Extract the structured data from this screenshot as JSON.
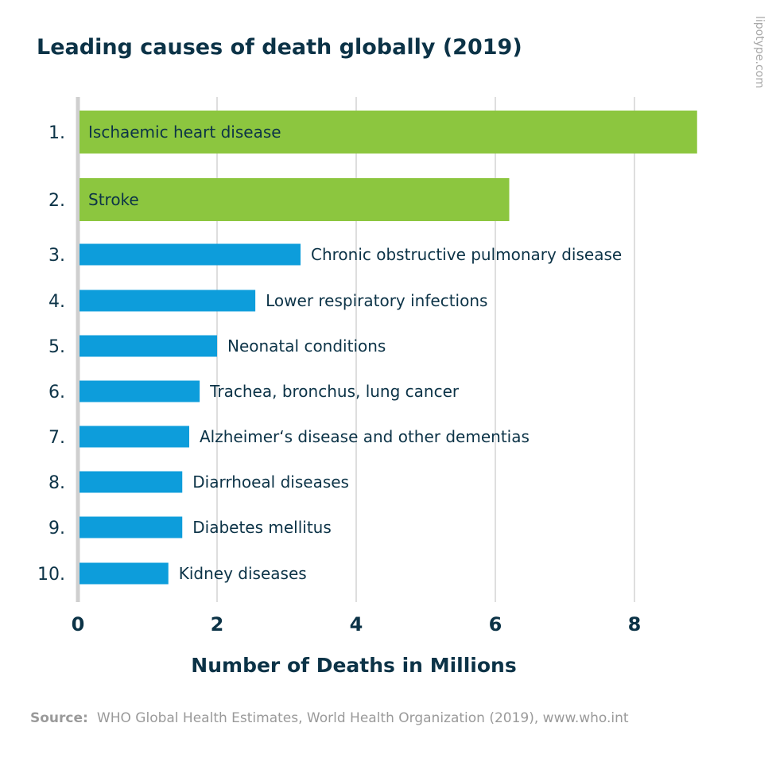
{
  "chart_data": {
    "type": "bar",
    "orientation": "horizontal",
    "title": "Leading causes of death globally (2019)",
    "xlabel": "Number of Deaths in Millions",
    "ylabel": "",
    "xlim": [
      0,
      9
    ],
    "xticks": [
      0,
      2,
      4,
      6,
      8
    ],
    "xtick_labels": [
      "0",
      "2",
      "4",
      "6",
      "8"
    ],
    "grid": true,
    "ranks": [
      "1.",
      "2.",
      "3.",
      "4.",
      "5.",
      "6.",
      "7.",
      "8.",
      "9.",
      "10."
    ],
    "categories": [
      "Ischaemic heart disease",
      "Stroke",
      "Chronic obstructive pulmonary disease",
      "Lower respiratory infections",
      "Neonatal conditions",
      "Trachea, bronchus, lung cancer",
      "Alzheimer‘s disease and other dementias",
      "Diarrhoeal diseases",
      "Diabetes mellitus",
      "Kidney diseases"
    ],
    "values": [
      8.9,
      6.2,
      3.2,
      2.55,
      2.0,
      1.75,
      1.6,
      1.5,
      1.5,
      1.3
    ],
    "label_inside": [
      true,
      true,
      false,
      false,
      false,
      false,
      false,
      false,
      false,
      false
    ],
    "colors": {
      "top": "#8cc63f",
      "other": "#0d9ddb"
    }
  },
  "source": {
    "label": "Source:",
    "text": "WHO Global Health Estimates, World Health Organization (2019), www.who.int"
  },
  "watermark": "lipotype.com"
}
